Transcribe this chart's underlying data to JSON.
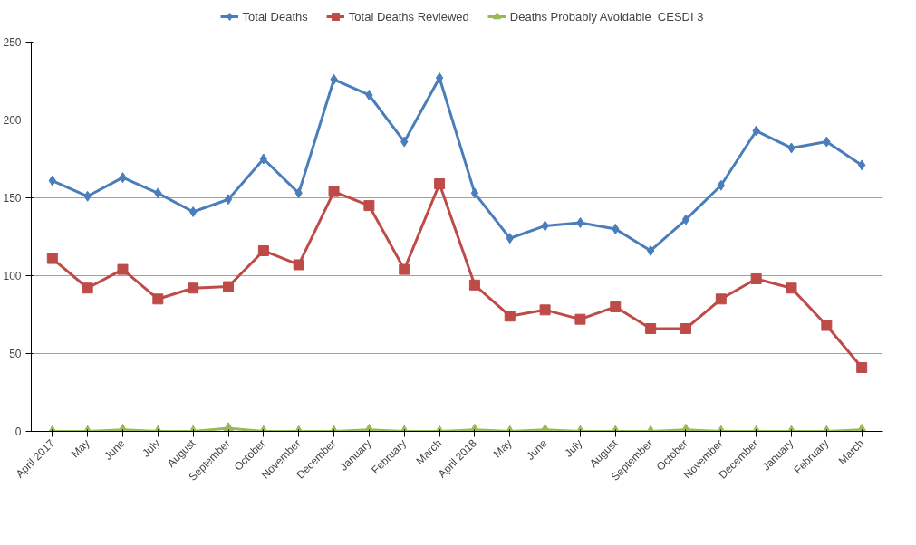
{
  "chart_data": {
    "type": "line",
    "categories": [
      "April 2017",
      "May",
      "June",
      "July",
      "August",
      "September",
      "October",
      "November",
      "December",
      "January",
      "February",
      "March",
      "April 2018",
      "May",
      "June",
      "July",
      "August",
      "September",
      "October",
      "November",
      "December",
      "January",
      "February",
      "March"
    ],
    "series": [
      {
        "name": "Total Deaths",
        "color": "#4a7ebb",
        "marker": "diamond",
        "values": [
          161,
          151,
          163,
          153,
          141,
          149,
          175,
          153,
          226,
          216,
          186,
          227,
          153,
          124,
          132,
          134,
          130,
          116,
          136,
          158,
          193,
          182,
          186,
          171
        ]
      },
      {
        "name": "Total Deaths Reviewed",
        "color": "#be4b48",
        "marker": "square",
        "values": [
          111,
          92,
          104,
          85,
          92,
          93,
          116,
          107,
          154,
          145,
          104,
          159,
          94,
          74,
          78,
          72,
          80,
          66,
          66,
          85,
          98,
          92,
          68,
          41
        ]
      },
      {
        "name": "Deaths Probably Avoidable  CESDI 3",
        "color": "#98b954",
        "marker": "triangle",
        "values": [
          0,
          0,
          1,
          0,
          0,
          2,
          0,
          0,
          0,
          1,
          0,
          0,
          1,
          0,
          1,
          0,
          0,
          0,
          1,
          0,
          0,
          0,
          0,
          1
        ]
      }
    ],
    "ylim": [
      0,
      250
    ],
    "yticks": [
      0,
      50,
      100,
      150,
      200,
      250
    ],
    "grid": "y",
    "legend": "top",
    "line_style": "solid"
  }
}
